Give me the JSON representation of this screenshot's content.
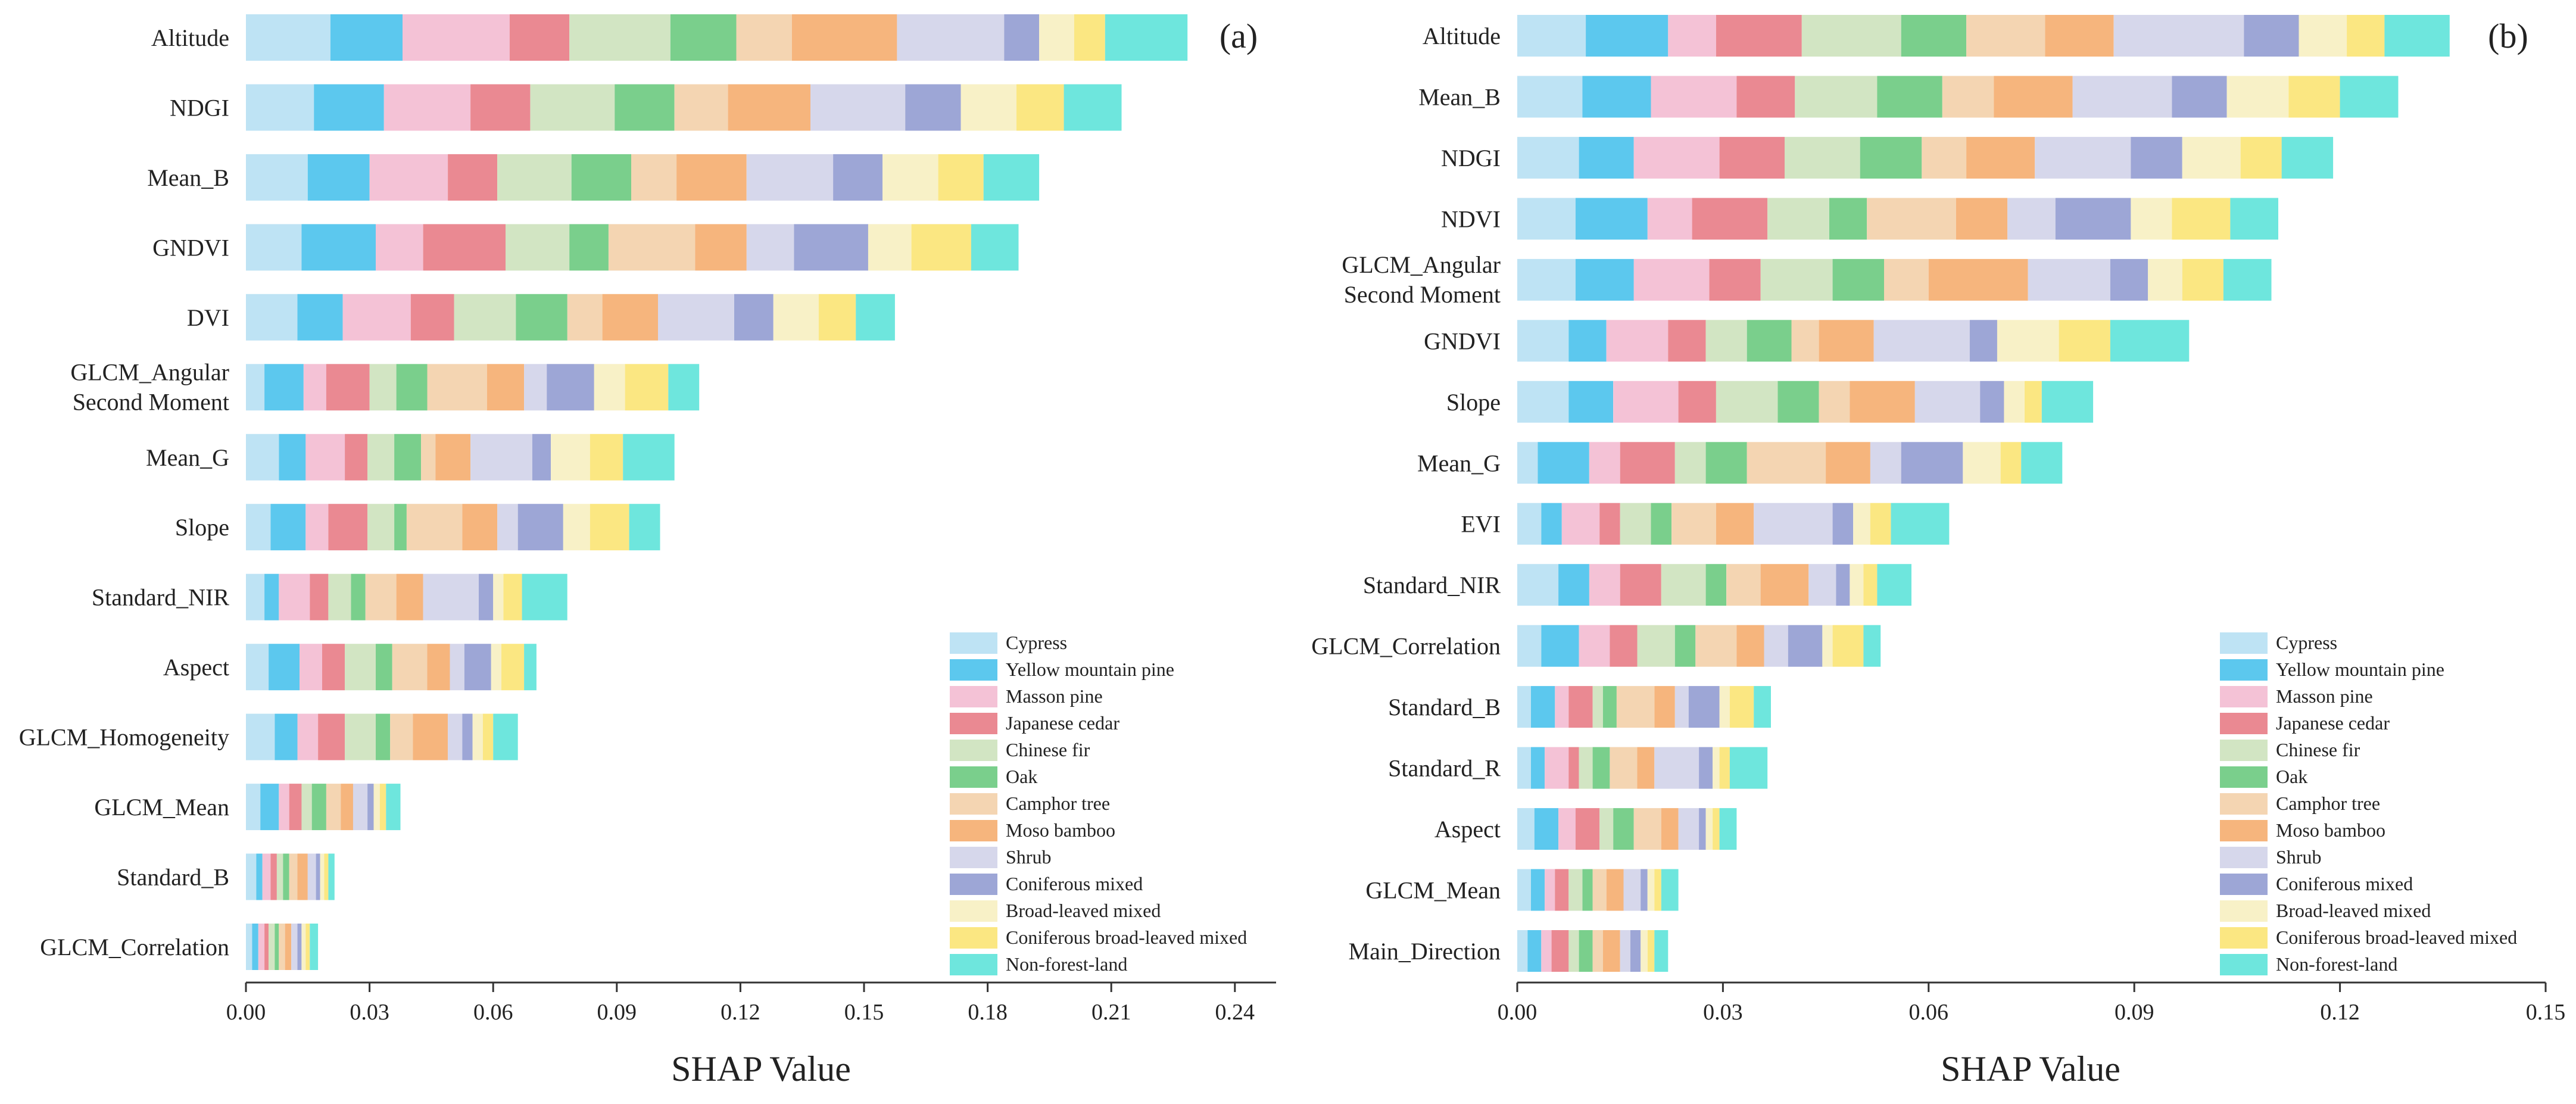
{
  "colors": {
    "Cypress": "#BEE3F4",
    "Yellow mountain pine": "#5CC8EE",
    "Masson pine": "#F4C2D6",
    "Japanese cedar": "#EA8992",
    "Chinese fir": "#D2E5C3",
    "Oak": "#7ACF8C",
    "Camphor tree": "#F4D5B2",
    "Moso bamboo": "#F6B57D",
    "Shrub": "#D6D7EB",
    "Coniferous mixed": "#9DA6D6",
    "Broad-leaved mixed": "#F8F1C7",
    "Coniferous broad-leaved mixed": "#FBE782",
    "Non-forest-land": "#6EE6DD"
  },
  "chart_data": [
    {
      "type": "bar",
      "stacked": true,
      "orientation": "horizontal",
      "panel_label": "(a)",
      "xlabel": "SHAP Value",
      "xlim": [
        0,
        0.25
      ],
      "xticks": [
        "0.00",
        "0.03",
        "0.06",
        "0.09",
        "0.12",
        "0.15",
        "0.18",
        "0.21",
        "0.24"
      ],
      "legend": [
        "Cypress",
        "Yellow mountain pine",
        "Masson pine",
        "Japanese cedar",
        "Chinese fir",
        "Oak",
        "Camphor tree",
        "Moso bamboo",
        "Shrub",
        "Coniferous mixed",
        "Broad-leaved mixed",
        "Coniferous broad-leaved mixed",
        "Non-forest-land"
      ],
      "legend_position": "bottom-right",
      "categories": [
        [
          "Altitude"
        ],
        [
          "NDGI"
        ],
        [
          "Mean_B"
        ],
        [
          "GNDVI"
        ],
        [
          "DVI"
        ],
        [
          "GLCM_Angular",
          "Second Moment"
        ],
        [
          "Mean_G"
        ],
        [
          "Slope"
        ],
        [
          "Standard_NIR"
        ],
        [
          "Aspect"
        ],
        [
          "GLCM_Homogeneity"
        ],
        [
          "GLCM_Mean"
        ],
        [
          "Standard_B"
        ],
        [
          "GLCM_Correlation"
        ]
      ],
      "values": [
        [
          0.0205,
          0.0175,
          0.026,
          0.0145,
          0.0245,
          0.016,
          0.0135,
          0.0255,
          0.026,
          0.0085,
          0.0085,
          0.0075,
          0.02
        ],
        [
          0.0165,
          0.017,
          0.021,
          0.0145,
          0.0205,
          0.0145,
          0.013,
          0.02,
          0.023,
          0.0135,
          0.0135,
          0.0115,
          0.014
        ],
        [
          0.015,
          0.015,
          0.019,
          0.012,
          0.018,
          0.0145,
          0.011,
          0.017,
          0.021,
          0.012,
          0.0135,
          0.011,
          0.0135
        ],
        [
          0.0135,
          0.018,
          0.0115,
          0.02,
          0.0155,
          0.0095,
          0.021,
          0.0125,
          0.0115,
          0.018,
          0.0105,
          0.0145,
          0.0115
        ],
        [
          0.0125,
          0.011,
          0.0165,
          0.0105,
          0.015,
          0.0125,
          0.0085,
          0.0135,
          0.0185,
          0.0095,
          0.011,
          0.009,
          0.0095
        ],
        [
          0.0045,
          0.0095,
          0.0055,
          0.0105,
          0.0065,
          0.0075,
          0.0145,
          0.009,
          0.0055,
          0.0115,
          0.0075,
          0.0105,
          0.0075
        ],
        [
          0.008,
          0.0065,
          0.0095,
          0.0055,
          0.0065,
          0.0065,
          0.0035,
          0.0085,
          0.015,
          0.0045,
          0.0095,
          0.008,
          0.0125
        ],
        [
          0.006,
          0.0085,
          0.0055,
          0.0095,
          0.0065,
          0.003,
          0.0135,
          0.0085,
          0.005,
          0.011,
          0.0065,
          0.0095,
          0.0075
        ],
        [
          0.0045,
          0.0035,
          0.0075,
          0.0045,
          0.0055,
          0.0035,
          0.0075,
          0.0065,
          0.0135,
          0.0035,
          0.0025,
          0.0045,
          0.011
        ],
        [
          0.0055,
          0.0075,
          0.0055,
          0.0055,
          0.0075,
          0.004,
          0.0085,
          0.0055,
          0.0035,
          0.0065,
          0.0025,
          0.0055,
          0.003
        ],
        [
          0.007,
          0.0055,
          0.005,
          0.0065,
          0.0075,
          0.0035,
          0.0055,
          0.0085,
          0.0035,
          0.0025,
          0.0025,
          0.0025,
          0.006
        ],
        [
          0.0035,
          0.0045,
          0.0025,
          0.003,
          0.0025,
          0.0035,
          0.0035,
          0.003,
          0.0035,
          0.0015,
          0.0015,
          0.0015,
          0.0035
        ],
        [
          0.0025,
          0.0015,
          0.002,
          0.0015,
          0.0015,
          0.0015,
          0.002,
          0.0025,
          0.002,
          0.001,
          0.001,
          0.001,
          0.0015
        ],
        [
          0.0015,
          0.0015,
          0.0015,
          0.001,
          0.0015,
          0.001,
          0.0015,
          0.0015,
          0.0015,
          0.001,
          0.001,
          0.001,
          0.002
        ]
      ]
    },
    {
      "type": "bar",
      "stacked": true,
      "orientation": "horizontal",
      "panel_label": "(b)",
      "xlabel": "SHAP Value",
      "xlim": [
        0,
        0.15
      ],
      "xticks": [
        "0.00",
        "0.03",
        "0.06",
        "0.09",
        "0.12",
        "0.15"
      ],
      "legend": [
        "Cypress",
        "Yellow mountain pine",
        "Masson pine",
        "Japanese cedar",
        "Chinese fir",
        "Oak",
        "Camphor tree",
        "Moso bamboo",
        "Shrub",
        "Coniferous mixed",
        "Broad-leaved mixed",
        "Coniferous broad-leaved mixed",
        "Non-forest-land"
      ],
      "legend_position": "bottom-right",
      "categories": [
        [
          "Altitude"
        ],
        [
          "Mean_B"
        ],
        [
          "NDGI"
        ],
        [
          "NDVI"
        ],
        [
          "GLCM_Angular",
          "Second Moment"
        ],
        [
          "GNDVI"
        ],
        [
          "Slope"
        ],
        [
          "Mean_G"
        ],
        [
          "EVI"
        ],
        [
          "Standard_NIR"
        ],
        [
          "GLCM_Correlation"
        ],
        [
          "Standard_B"
        ],
        [
          "Standard_R"
        ],
        [
          "Aspect"
        ],
        [
          "GLCM_Mean"
        ],
        [
          "Main_Direction"
        ]
      ],
      "values": [
        [
          0.01,
          0.012,
          0.007,
          0.0125,
          0.0145,
          0.0095,
          0.0115,
          0.01,
          0.019,
          0.008,
          0.007,
          0.0055,
          0.0095
        ],
        [
          0.0095,
          0.01,
          0.0125,
          0.0085,
          0.012,
          0.0095,
          0.0075,
          0.0115,
          0.0145,
          0.008,
          0.009,
          0.0075,
          0.0085
        ],
        [
          0.009,
          0.008,
          0.0125,
          0.0095,
          0.011,
          0.009,
          0.0065,
          0.01,
          0.014,
          0.0075,
          0.0085,
          0.006,
          0.0075
        ],
        [
          0.0085,
          0.0105,
          0.0065,
          0.011,
          0.009,
          0.0055,
          0.013,
          0.0075,
          0.007,
          0.011,
          0.006,
          0.0085,
          0.007
        ],
        [
          0.0085,
          0.0085,
          0.011,
          0.0075,
          0.0105,
          0.0075,
          0.0065,
          0.0145,
          0.012,
          0.0055,
          0.005,
          0.006,
          0.007
        ],
        [
          0.0075,
          0.0055,
          0.009,
          0.0055,
          0.006,
          0.0065,
          0.004,
          0.008,
          0.014,
          0.004,
          0.009,
          0.0075,
          0.0115
        ],
        [
          0.0075,
          0.0065,
          0.0095,
          0.0055,
          0.009,
          0.006,
          0.0045,
          0.0095,
          0.0095,
          0.0035,
          0.003,
          0.0025,
          0.0075
        ],
        [
          0.003,
          0.0075,
          0.0045,
          0.008,
          0.0045,
          0.006,
          0.0115,
          0.0065,
          0.0045,
          0.009,
          0.0055,
          0.003,
          0.006
        ],
        [
          0.0035,
          0.003,
          0.0055,
          0.003,
          0.0045,
          0.003,
          0.0065,
          0.0055,
          0.0115,
          0.003,
          0.0025,
          0.003,
          0.0085
        ],
        [
          0.006,
          0.0045,
          0.0045,
          0.006,
          0.0065,
          0.003,
          0.005,
          0.007,
          0.004,
          0.002,
          0.002,
          0.002,
          0.005
        ],
        [
          0.0035,
          0.0055,
          0.0045,
          0.004,
          0.0055,
          0.003,
          0.006,
          0.004,
          0.0035,
          0.005,
          0.0015,
          0.0045,
          0.0025
        ],
        [
          0.002,
          0.0035,
          0.002,
          0.0035,
          0.0015,
          0.002,
          0.0055,
          0.003,
          0.002,
          0.0045,
          0.0015,
          0.0035,
          0.0025
        ],
        [
          0.002,
          0.002,
          0.0035,
          0.0015,
          0.002,
          0.0025,
          0.004,
          0.0025,
          0.0065,
          0.002,
          0.001,
          0.0015,
          0.0055
        ],
        [
          0.0025,
          0.0035,
          0.0025,
          0.0035,
          0.002,
          0.003,
          0.004,
          0.0025,
          0.003,
          0.001,
          0.001,
          0.001,
          0.0025
        ],
        [
          0.002,
          0.002,
          0.0015,
          0.002,
          0.002,
          0.0015,
          0.002,
          0.0025,
          0.0025,
          0.001,
          0.001,
          0.001,
          0.0025
        ],
        [
          0.0015,
          0.002,
          0.0015,
          0.0025,
          0.0015,
          0.002,
          0.0015,
          0.0025,
          0.0015,
          0.0015,
          0.001,
          0.001,
          0.002
        ]
      ]
    }
  ]
}
